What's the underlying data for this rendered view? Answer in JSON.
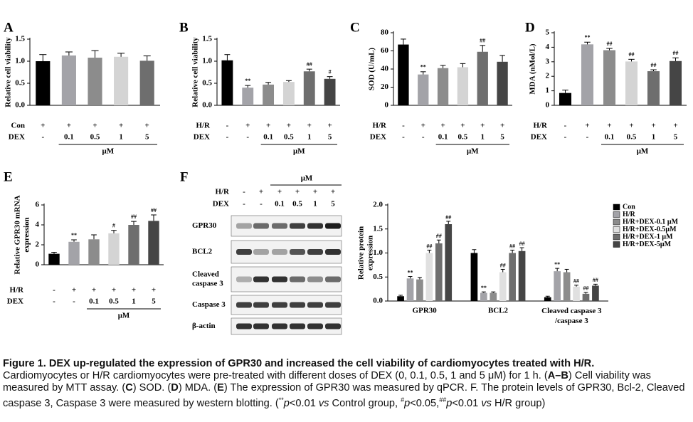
{
  "chart_data": [
    {
      "type": "bar",
      "panel": "A",
      "ylabel": [
        "Relative cell viability"
      ],
      "values": [
        1.0,
        1.13,
        1.08,
        1.1,
        1.01
      ],
      "errors": [
        0.15,
        0.08,
        0.16,
        0.08,
        0.11
      ],
      "annotations": [
        null,
        null,
        null,
        null,
        null
      ],
      "colors": [
        "#000000",
        "#a3a3a8",
        "#8c8c8c",
        "#d4d4d4",
        "#6e6e6e"
      ],
      "rows": [
        {
          "name": "Con",
          "labels": [
            "+",
            "+",
            "+",
            "+",
            "+"
          ]
        },
        {
          "name": "DEX",
          "labels": [
            "-",
            "0.1",
            "0.5",
            "1",
            "5"
          ]
        }
      ],
      "unit": "μM",
      "ylim": [
        0,
        1.5
      ],
      "yticks": [
        {
          "value": 0,
          "label": "0.0"
        },
        {
          "value": 0.5,
          "label": "0.5"
        },
        {
          "value": 1,
          "label": "1.0"
        },
        {
          "value": 1.5,
          "label": "1.5"
        }
      ]
    },
    {
      "type": "bar",
      "panel": "B",
      "ylabel": [
        "Relative cell viability"
      ],
      "values": [
        1.02,
        0.4,
        0.47,
        0.53,
        0.77,
        0.6
      ],
      "errors": [
        0.13,
        0.05,
        0.05,
        0.03,
        0.05,
        0.05
      ],
      "annotations": [
        null,
        "**",
        null,
        null,
        "##",
        "#"
      ],
      "colors": [
        "#000000",
        "#a3a3a8",
        "#8c8c8c",
        "#d4d4d4",
        "#6e6e6e",
        "#454545"
      ],
      "rows": [
        {
          "name": "H/R",
          "labels": [
            "-",
            "+",
            "+",
            "+",
            "+",
            "+"
          ]
        },
        {
          "name": "DEX",
          "labels": [
            "-",
            "-",
            "0.1",
            "0.5",
            "1",
            "5"
          ]
        }
      ],
      "unit": "μM",
      "ylim": [
        0,
        1.5
      ],
      "yticks": [
        {
          "value": 0,
          "label": "0.0"
        },
        {
          "value": 0.5,
          "label": "0.5"
        },
        {
          "value": 1,
          "label": "1.0"
        },
        {
          "value": 1.5,
          "label": "1.5"
        }
      ]
    },
    {
      "type": "bar",
      "panel": "C",
      "ylabel": [
        "SOD (U/mL)"
      ],
      "values": [
        67,
        34,
        41,
        42,
        59,
        48
      ],
      "errors": [
        6,
        3,
        3,
        4,
        7,
        7
      ],
      "annotations": [
        null,
        "**",
        null,
        null,
        "##",
        null
      ],
      "colors": [
        "#000000",
        "#a3a3a8",
        "#8c8c8c",
        "#d4d4d4",
        "#6e6e6e",
        "#454545"
      ],
      "rows": [
        {
          "name": "H/R",
          "labels": [
            "-",
            "+",
            "+",
            "+",
            "+",
            "+"
          ]
        },
        {
          "name": "DEX",
          "labels": [
            "-",
            "-",
            "0.1",
            "0.5",
            "1",
            "5"
          ]
        }
      ],
      "unit": "μM",
      "ylim": [
        0,
        80
      ],
      "yticks": [
        0,
        20,
        40,
        60,
        80
      ]
    },
    {
      "type": "bar",
      "panel": "D",
      "ylabel": [
        "MDA (nMol/L)"
      ],
      "values": [
        0.85,
        4.2,
        3.8,
        3.02,
        2.35,
        3.05
      ],
      "errors": [
        0.2,
        0.15,
        0.12,
        0.15,
        0.1,
        0.22
      ],
      "annotations": [
        null,
        "**",
        "##",
        "##",
        "##",
        "##"
      ],
      "colors": [
        "#000000",
        "#a3a3a8",
        "#8c8c8c",
        "#d4d4d4",
        "#6e6e6e",
        "#454545"
      ],
      "rows": [
        {
          "name": "H/R",
          "labels": [
            "-",
            "+",
            "+",
            "+",
            "+",
            "+"
          ]
        },
        {
          "name": "DEX",
          "labels": [
            "-",
            "-",
            "0.1",
            "0.5",
            "1",
            "5"
          ]
        }
      ],
      "unit": "μM",
      "ylim": [
        0,
        5
      ],
      "yticks": [
        0,
        1,
        2,
        3,
        4,
        5
      ]
    },
    {
      "type": "bar",
      "panel": "E",
      "ylabel": [
        "Relative GPR30 mRNA",
        "expression"
      ],
      "values": [
        1.1,
        2.3,
        2.55,
        3.15,
        4.0,
        4.4
      ],
      "errors": [
        0.15,
        0.2,
        0.45,
        0.3,
        0.35,
        0.6
      ],
      "annotations": [
        null,
        "**",
        null,
        "#",
        "##",
        "##"
      ],
      "colors": [
        "#000000",
        "#a3a3a8",
        "#8c8c8c",
        "#d4d4d4",
        "#6e6e6e",
        "#454545"
      ],
      "rows": [
        {
          "name": "H/R",
          "labels": [
            "-",
            "+",
            "+",
            "+",
            "+",
            "+"
          ]
        },
        {
          "name": "DEX",
          "labels": [
            "-",
            "-",
            "0.1",
            "0.5",
            "1",
            "5"
          ]
        }
      ],
      "unit": "μM",
      "ylim": [
        0,
        6
      ],
      "yticks": [
        0,
        2,
        4,
        6
      ]
    },
    {
      "type": "grouped_bar",
      "panel": "F",
      "ylabel": [
        "Relative protein",
        "expression"
      ],
      "categories": [
        "GPR30",
        "BCL2",
        "Cleaved caspase 3\n/caspase 3"
      ],
      "series": [
        {
          "name": "Con",
          "color": "#000000",
          "values": [
            0.1,
            1.0,
            0.08
          ],
          "errors": [
            0.02,
            0.07,
            0.02
          ],
          "annotations": [
            null,
            null,
            null
          ]
        },
        {
          "name": "H/R",
          "color": "#a3a3a8",
          "values": [
            0.47,
            0.17,
            0.62
          ],
          "errors": [
            0.04,
            0.02,
            0.06
          ],
          "annotations": [
            "**",
            "**",
            "**"
          ]
        },
        {
          "name": "H/R+DEX-0.1 μM",
          "color": "#8c8c8c",
          "values": [
            0.45,
            0.17,
            0.6
          ],
          "errors": [
            0.04,
            0.02,
            0.06
          ],
          "annotations": [
            null,
            null,
            null
          ]
        },
        {
          "name": "H/R+DEX-0.5μM",
          "color": "#e0e0e0",
          "values": [
            1.0,
            0.6,
            0.3
          ],
          "errors": [
            0.06,
            0.06,
            0.03
          ],
          "annotations": [
            "##",
            "##",
            "##"
          ]
        },
        {
          "name": "H/R+DEX-1 μM",
          "color": "#6e6e6e",
          "values": [
            1.2,
            1.0,
            0.15
          ],
          "errors": [
            0.07,
            0.06,
            0.03
          ],
          "annotations": [
            "##",
            "##",
            "##"
          ]
        },
        {
          "name": "H/R+DEX-5μM",
          "color": "#454545",
          "values": [
            1.6,
            1.04,
            0.32
          ],
          "errors": [
            0.06,
            0.07,
            0.03
          ],
          "annotations": [
            "##",
            "##",
            "##"
          ]
        }
      ],
      "ylim": [
        0,
        2
      ],
      "yticks": [
        {
          "value": 0,
          "label": "0.0"
        },
        {
          "value": 0.5,
          "label": "0.5"
        },
        {
          "value": 1,
          "label": "1.0"
        },
        {
          "value": 1.5,
          "label": "1.5"
        },
        {
          "value": 2,
          "label": "2.0"
        }
      ]
    }
  ],
  "blot": {
    "rows": [
      {
        "name": "H/R",
        "labels": [
          "-",
          "+",
          "+",
          "+",
          "+",
          "+"
        ]
      },
      {
        "name": "DEX",
        "labels": [
          "-",
          "-",
          "0.1",
          "0.5",
          "1",
          "5"
        ]
      }
    ],
    "unit": "μM",
    "bands": [
      "GPR30",
      "BCL2",
      "Cleaved\ncaspase 3",
      "Caspase 3",
      "β-actin"
    ]
  },
  "caption": {
    "title": "Figure 1. DEX up-regulated the expression of GPR30 and increased the cell viability of cardiomyocytes treated with H/R.",
    "body": [
      {
        "text": "Cardiomyocytes or H/R cardiomyocytes were pre-treated with different doses of DEX (0, 0.1, 0.5, 1 and 5 μM) for 1 h. ("
      },
      {
        "text": "A–B",
        "style": "b"
      },
      {
        "text": ") Cell viability was measured by MTT assay. ("
      },
      {
        "text": "C",
        "style": "b"
      },
      {
        "text": ") SOD. ("
      },
      {
        "text": "D",
        "style": "b"
      },
      {
        "text": ") MDA. ("
      },
      {
        "text": "E",
        "style": "b"
      },
      {
        "text": ") The expression of GPR30 was measured by qPCR. F. The protein levels of GPR30, Bcl-2, Cleaved caspase 3, Caspase 3 were measured by western blotting. ("
      },
      {
        "text": "**",
        "style": "sup"
      },
      {
        "text": "p",
        "style": "i"
      },
      {
        "text": "<0.01 "
      },
      {
        "text": "vs",
        "style": "i"
      },
      {
        "text": " Control group, "
      },
      {
        "text": "#",
        "style": "sup"
      },
      {
        "text": "p",
        "style": "i"
      },
      {
        "text": "<0.05,"
      },
      {
        "text": "##",
        "style": "sup"
      },
      {
        "text": "p",
        "style": "i"
      },
      {
        "text": "<0.01 "
      },
      {
        "text": "vs",
        "style": "i"
      },
      {
        "text": " H/R group)"
      }
    ]
  }
}
